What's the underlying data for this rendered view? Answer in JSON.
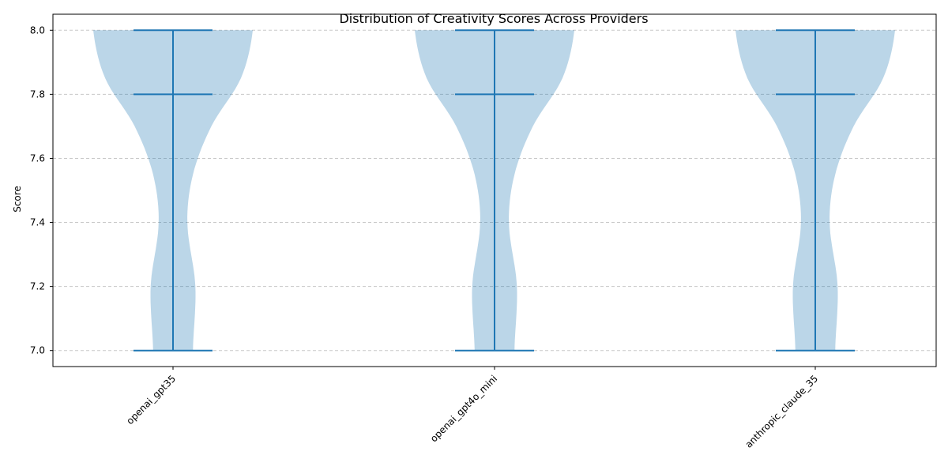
{
  "chart_data": {
    "type": "violin",
    "title": "Distribution of Creativity Scores Across Providers",
    "xlabel": "",
    "ylabel": "Score",
    "ylim": [
      6.95,
      8.05
    ],
    "yticks": [
      "7.0",
      "7.2",
      "7.4",
      "7.6",
      "7.8",
      "8.0"
    ],
    "grid": "y-dashed",
    "colors": {
      "fill": "#1f77b4",
      "line": "#1f77b4",
      "grid": "#c8c8c8"
    },
    "categories": [
      "openai_gpt35",
      "openai_gpt4o_mini",
      "anthropic_claude_35"
    ],
    "series": [
      {
        "min": 7.0,
        "median": 7.8,
        "max": 8.0,
        "density": [
          [
            7.0,
            0.25
          ],
          [
            7.2,
            0.28
          ],
          [
            7.4,
            0.18
          ],
          [
            7.55,
            0.25
          ],
          [
            7.7,
            0.48
          ],
          [
            7.85,
            0.85
          ],
          [
            8.0,
            1.0
          ]
        ]
      },
      {
        "min": 7.0,
        "median": 7.8,
        "max": 8.0,
        "density": [
          [
            7.0,
            0.25
          ],
          [
            7.2,
            0.28
          ],
          [
            7.4,
            0.18
          ],
          [
            7.55,
            0.25
          ],
          [
            7.7,
            0.48
          ],
          [
            7.85,
            0.85
          ],
          [
            8.0,
            1.0
          ]
        ]
      },
      {
        "min": 7.0,
        "median": 7.8,
        "max": 8.0,
        "density": [
          [
            7.0,
            0.25
          ],
          [
            7.2,
            0.28
          ],
          [
            7.4,
            0.18
          ],
          [
            7.55,
            0.25
          ],
          [
            7.7,
            0.48
          ],
          [
            7.85,
            0.85
          ],
          [
            8.0,
            1.0
          ]
        ]
      }
    ]
  }
}
